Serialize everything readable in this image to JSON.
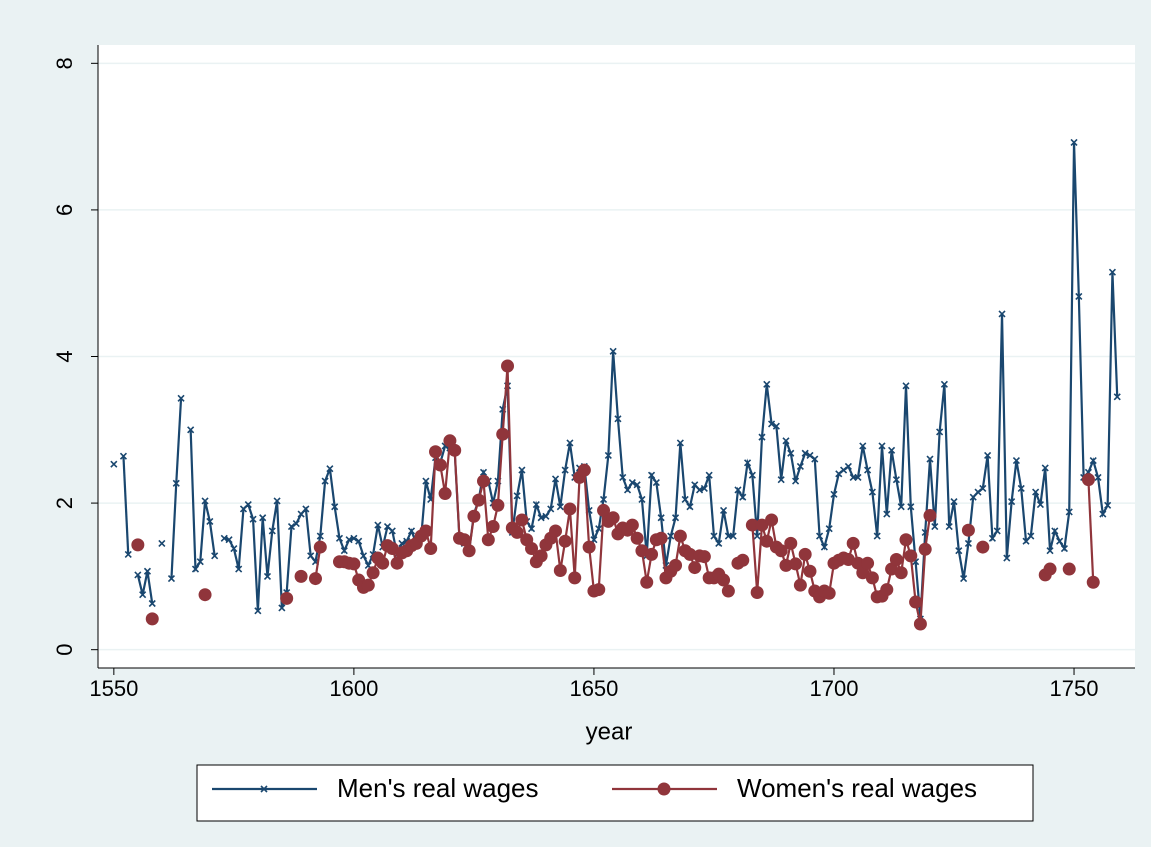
{
  "chart_data": {
    "type": "line",
    "x_label": "year",
    "x": [
      1550,
      1551,
      1552,
      1553,
      1554,
      1555,
      1556,
      1557,
      1558,
      1559,
      1560,
      1561,
      1562,
      1563,
      1564,
      1565,
      1566,
      1567,
      1568,
      1569,
      1570,
      1571,
      1572,
      1573,
      1574,
      1575,
      1576,
      1577,
      1578,
      1579,
      1580,
      1581,
      1582,
      1583,
      1584,
      1585,
      1586,
      1587,
      1588,
      1589,
      1590,
      1591,
      1592,
      1593,
      1594,
      1595,
      1596,
      1597,
      1598,
      1599,
      1600,
      1601,
      1602,
      1603,
      1604,
      1605,
      1606,
      1607,
      1608,
      1609,
      1610,
      1611,
      1612,
      1613,
      1614,
      1615,
      1616,
      1617,
      1618,
      1619,
      1620,
      1621,
      1622,
      1623,
      1624,
      1625,
      1626,
      1627,
      1628,
      1629,
      1630,
      1631,
      1632,
      1633,
      1634,
      1635,
      1636,
      1637,
      1638,
      1639,
      1640,
      1641,
      1642,
      1643,
      1644,
      1645,
      1646,
      1647,
      1648,
      1649,
      1650,
      1651,
      1652,
      1653,
      1654,
      1655,
      1656,
      1657,
      1658,
      1659,
      1660,
      1661,
      1662,
      1663,
      1664,
      1665,
      1666,
      1667,
      1668,
      1669,
      1670,
      1671,
      1672,
      1673,
      1674,
      1675,
      1676,
      1677,
      1678,
      1679,
      1680,
      1681,
      1682,
      1683,
      1684,
      1685,
      1686,
      1687,
      1688,
      1689,
      1690,
      1691,
      1692,
      1693,
      1694,
      1695,
      1696,
      1697,
      1698,
      1699,
      1700,
      1701,
      1702,
      1703,
      1704,
      1705,
      1706,
      1707,
      1708,
      1709,
      1710,
      1711,
      1712,
      1713,
      1714,
      1715,
      1716,
      1717,
      1718,
      1719,
      1720,
      1721,
      1722,
      1723,
      1724,
      1725,
      1726,
      1727,
      1728,
      1729,
      1730,
      1731,
      1732,
      1733,
      1734,
      1735,
      1736,
      1737,
      1738,
      1739,
      1740,
      1741,
      1742,
      1743,
      1744,
      1745,
      1746,
      1747,
      1748,
      1749,
      1750,
      1751,
      1752,
      1753,
      1754,
      1755,
      1756,
      1757,
      1758,
      1759
    ],
    "series": [
      {
        "name": "Men's real wages",
        "color": "#1a476f",
        "marker": "x",
        "values": [
          2.53,
          null,
          2.64,
          1.3,
          null,
          1.02,
          0.75,
          1.07,
          0.63,
          null,
          1.45,
          null,
          0.97,
          2.27,
          3.43,
          null,
          3.0,
          1.1,
          1.2,
          2.03,
          1.75,
          1.28,
          null,
          1.52,
          1.5,
          1.38,
          1.1,
          1.92,
          1.98,
          1.78,
          0.53,
          1.8,
          1.0,
          1.62,
          2.03,
          0.57,
          0.78,
          1.68,
          1.72,
          1.85,
          1.92,
          1.28,
          1.2,
          1.55,
          2.3,
          2.47,
          1.95,
          1.52,
          1.35,
          1.5,
          1.52,
          1.48,
          1.28,
          1.15,
          1.3,
          1.7,
          1.4,
          1.68,
          1.62,
          1.3,
          1.45,
          1.48,
          1.62,
          1.45,
          1.52,
          2.3,
          2.05,
          2.62,
          2.55,
          2.78,
          2.75,
          2.7,
          1.5,
          1.45,
          1.35,
          1.85,
          2.05,
          2.42,
          2.3,
          2.0,
          2.3,
          3.28,
          3.6,
          1.6,
          2.1,
          2.45,
          1.75,
          1.65,
          1.98,
          1.8,
          1.82,
          1.92,
          2.33,
          1.95,
          2.45,
          2.82,
          2.35,
          2.48,
          2.5,
          1.9,
          1.5,
          1.65,
          2.05,
          2.65,
          4.07,
          3.15,
          2.35,
          2.18,
          2.28,
          2.25,
          2.05,
          1.28,
          2.38,
          2.28,
          1.8,
          1.15,
          1.55,
          1.8,
          2.82,
          2.05,
          1.95,
          2.25,
          2.18,
          2.2,
          2.38,
          1.55,
          1.45,
          1.9,
          1.55,
          1.55,
          2.18,
          2.08,
          2.55,
          2.38,
          1.55,
          2.9,
          3.62,
          3.08,
          3.05,
          2.32,
          2.85,
          2.68,
          2.3,
          2.5,
          2.68,
          2.65,
          2.6,
          1.55,
          1.4,
          1.65,
          2.12,
          2.4,
          2.45,
          2.5,
          2.35,
          2.35,
          2.78,
          2.45,
          2.15,
          1.55,
          2.78,
          1.85,
          2.72,
          2.32,
          1.95,
          3.6,
          1.95,
          1.2,
          0.42,
          1.6,
          2.6,
          1.68,
          2.97,
          3.62,
          1.68,
          2.02,
          1.35,
          0.97,
          1.45,
          2.08,
          2.15,
          2.2,
          2.65,
          1.52,
          1.62,
          4.58,
          1.25,
          2.02,
          2.58,
          2.2,
          1.48,
          1.55,
          2.15,
          1.98,
          2.48,
          1.35,
          1.62,
          1.48,
          1.38,
          1.88,
          6.92,
          4.82,
          2.35,
          2.42,
          2.58,
          2.35,
          1.85,
          1.97,
          5.15,
          3.45
        ]
      },
      {
        "name": "Women's real wages",
        "color": "#90353b",
        "marker": "circle",
        "values": [
          null,
          null,
          null,
          null,
          null,
          1.43,
          null,
          null,
          0.42,
          null,
          null,
          null,
          null,
          null,
          null,
          null,
          null,
          null,
          null,
          0.75,
          null,
          null,
          null,
          null,
          null,
          null,
          null,
          null,
          null,
          null,
          null,
          null,
          null,
          null,
          null,
          null,
          0.7,
          null,
          null,
          1.0,
          null,
          null,
          0.97,
          1.4,
          null,
          null,
          null,
          1.2,
          1.2,
          1.18,
          1.17,
          0.95,
          0.85,
          0.88,
          1.05,
          1.25,
          1.18,
          1.42,
          1.38,
          1.18,
          1.32,
          1.35,
          1.42,
          1.45,
          1.55,
          1.62,
          1.38,
          2.7,
          2.52,
          2.13,
          2.85,
          2.72,
          1.52,
          1.5,
          1.35,
          1.82,
          2.04,
          2.3,
          1.5,
          1.68,
          1.97,
          2.94,
          3.87,
          1.66,
          1.6,
          1.77,
          1.5,
          1.38,
          1.2,
          1.28,
          1.43,
          1.52,
          1.62,
          1.08,
          1.48,
          1.92,
          0.98,
          2.35,
          2.45,
          1.4,
          0.8,
          0.82,
          1.9,
          1.75,
          1.8,
          1.58,
          1.66,
          1.63,
          1.7,
          1.52,
          1.35,
          0.92,
          1.3,
          1.5,
          1.52,
          0.98,
          1.07,
          1.15,
          1.55,
          1.35,
          1.3,
          1.12,
          1.28,
          1.27,
          0.98,
          0.98,
          1.03,
          0.95,
          0.8,
          null,
          1.18,
          1.22,
          null,
          1.7,
          0.78,
          1.7,
          1.48,
          1.77,
          1.4,
          1.35,
          1.15,
          1.45,
          1.17,
          0.88,
          1.3,
          1.07,
          0.8,
          0.72,
          0.8,
          0.77,
          1.18,
          1.22,
          1.25,
          1.23,
          1.45,
          1.18,
          1.05,
          1.18,
          0.98,
          0.72,
          0.73,
          0.82,
          1.1,
          1.23,
          1.05,
          1.5,
          1.28,
          0.65,
          0.35,
          1.37,
          1.83,
          null,
          null,
          null,
          null,
          null,
          null,
          null,
          1.63,
          null,
          null,
          1.4,
          null,
          null,
          null,
          null,
          null,
          null,
          null,
          null,
          null,
          null,
          null,
          null,
          1.02,
          1.1,
          null,
          null,
          null,
          1.1,
          null,
          null,
          null,
          2.32,
          0.92,
          null,
          null,
          null,
          null,
          null
        ]
      }
    ],
    "xlim": [
      1546.7,
      1762.7
    ],
    "xticks": [
      1550,
      1600,
      1650,
      1700,
      1750
    ],
    "ylim": [
      -0.25,
      8.25
    ],
    "yticks": [
      0,
      2,
      4,
      6,
      8
    ],
    "grid": true,
    "legend": "bottom"
  }
}
